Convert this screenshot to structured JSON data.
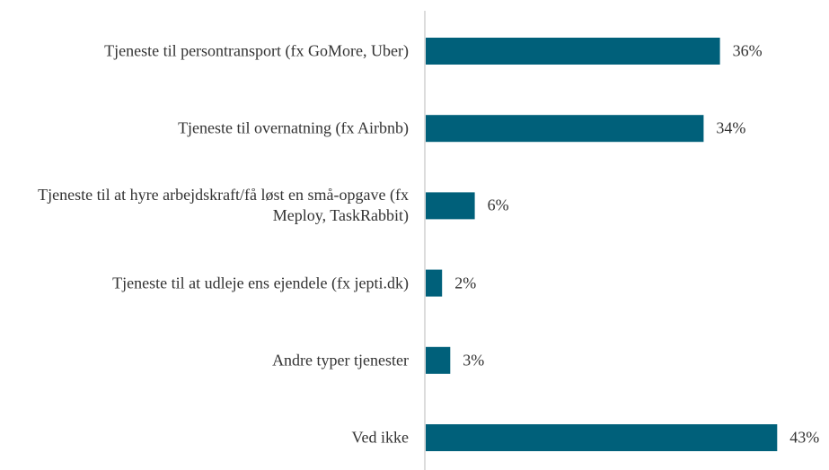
{
  "chart_data": {
    "type": "bar",
    "orientation": "horizontal",
    "categories": [
      "Tjeneste til persontransport (fx GoMore, Uber)",
      "Tjeneste til overnatning (fx Airbnb)",
      "Tjeneste til at hyre arbejdskraft/få løst en små-opgave (fx Meploy, TaskRabbit)",
      "Tjeneste til at udleje ens ejendele (fx jepti.dk)",
      "Andre typer tjenester",
      "Ved ikke"
    ],
    "values": [
      36,
      34,
      6,
      2,
      3,
      43
    ],
    "value_labels": [
      "36%",
      "34%",
      "6%",
      "2%",
      "3%",
      "43%"
    ],
    "color": "#00607a"
  }
}
